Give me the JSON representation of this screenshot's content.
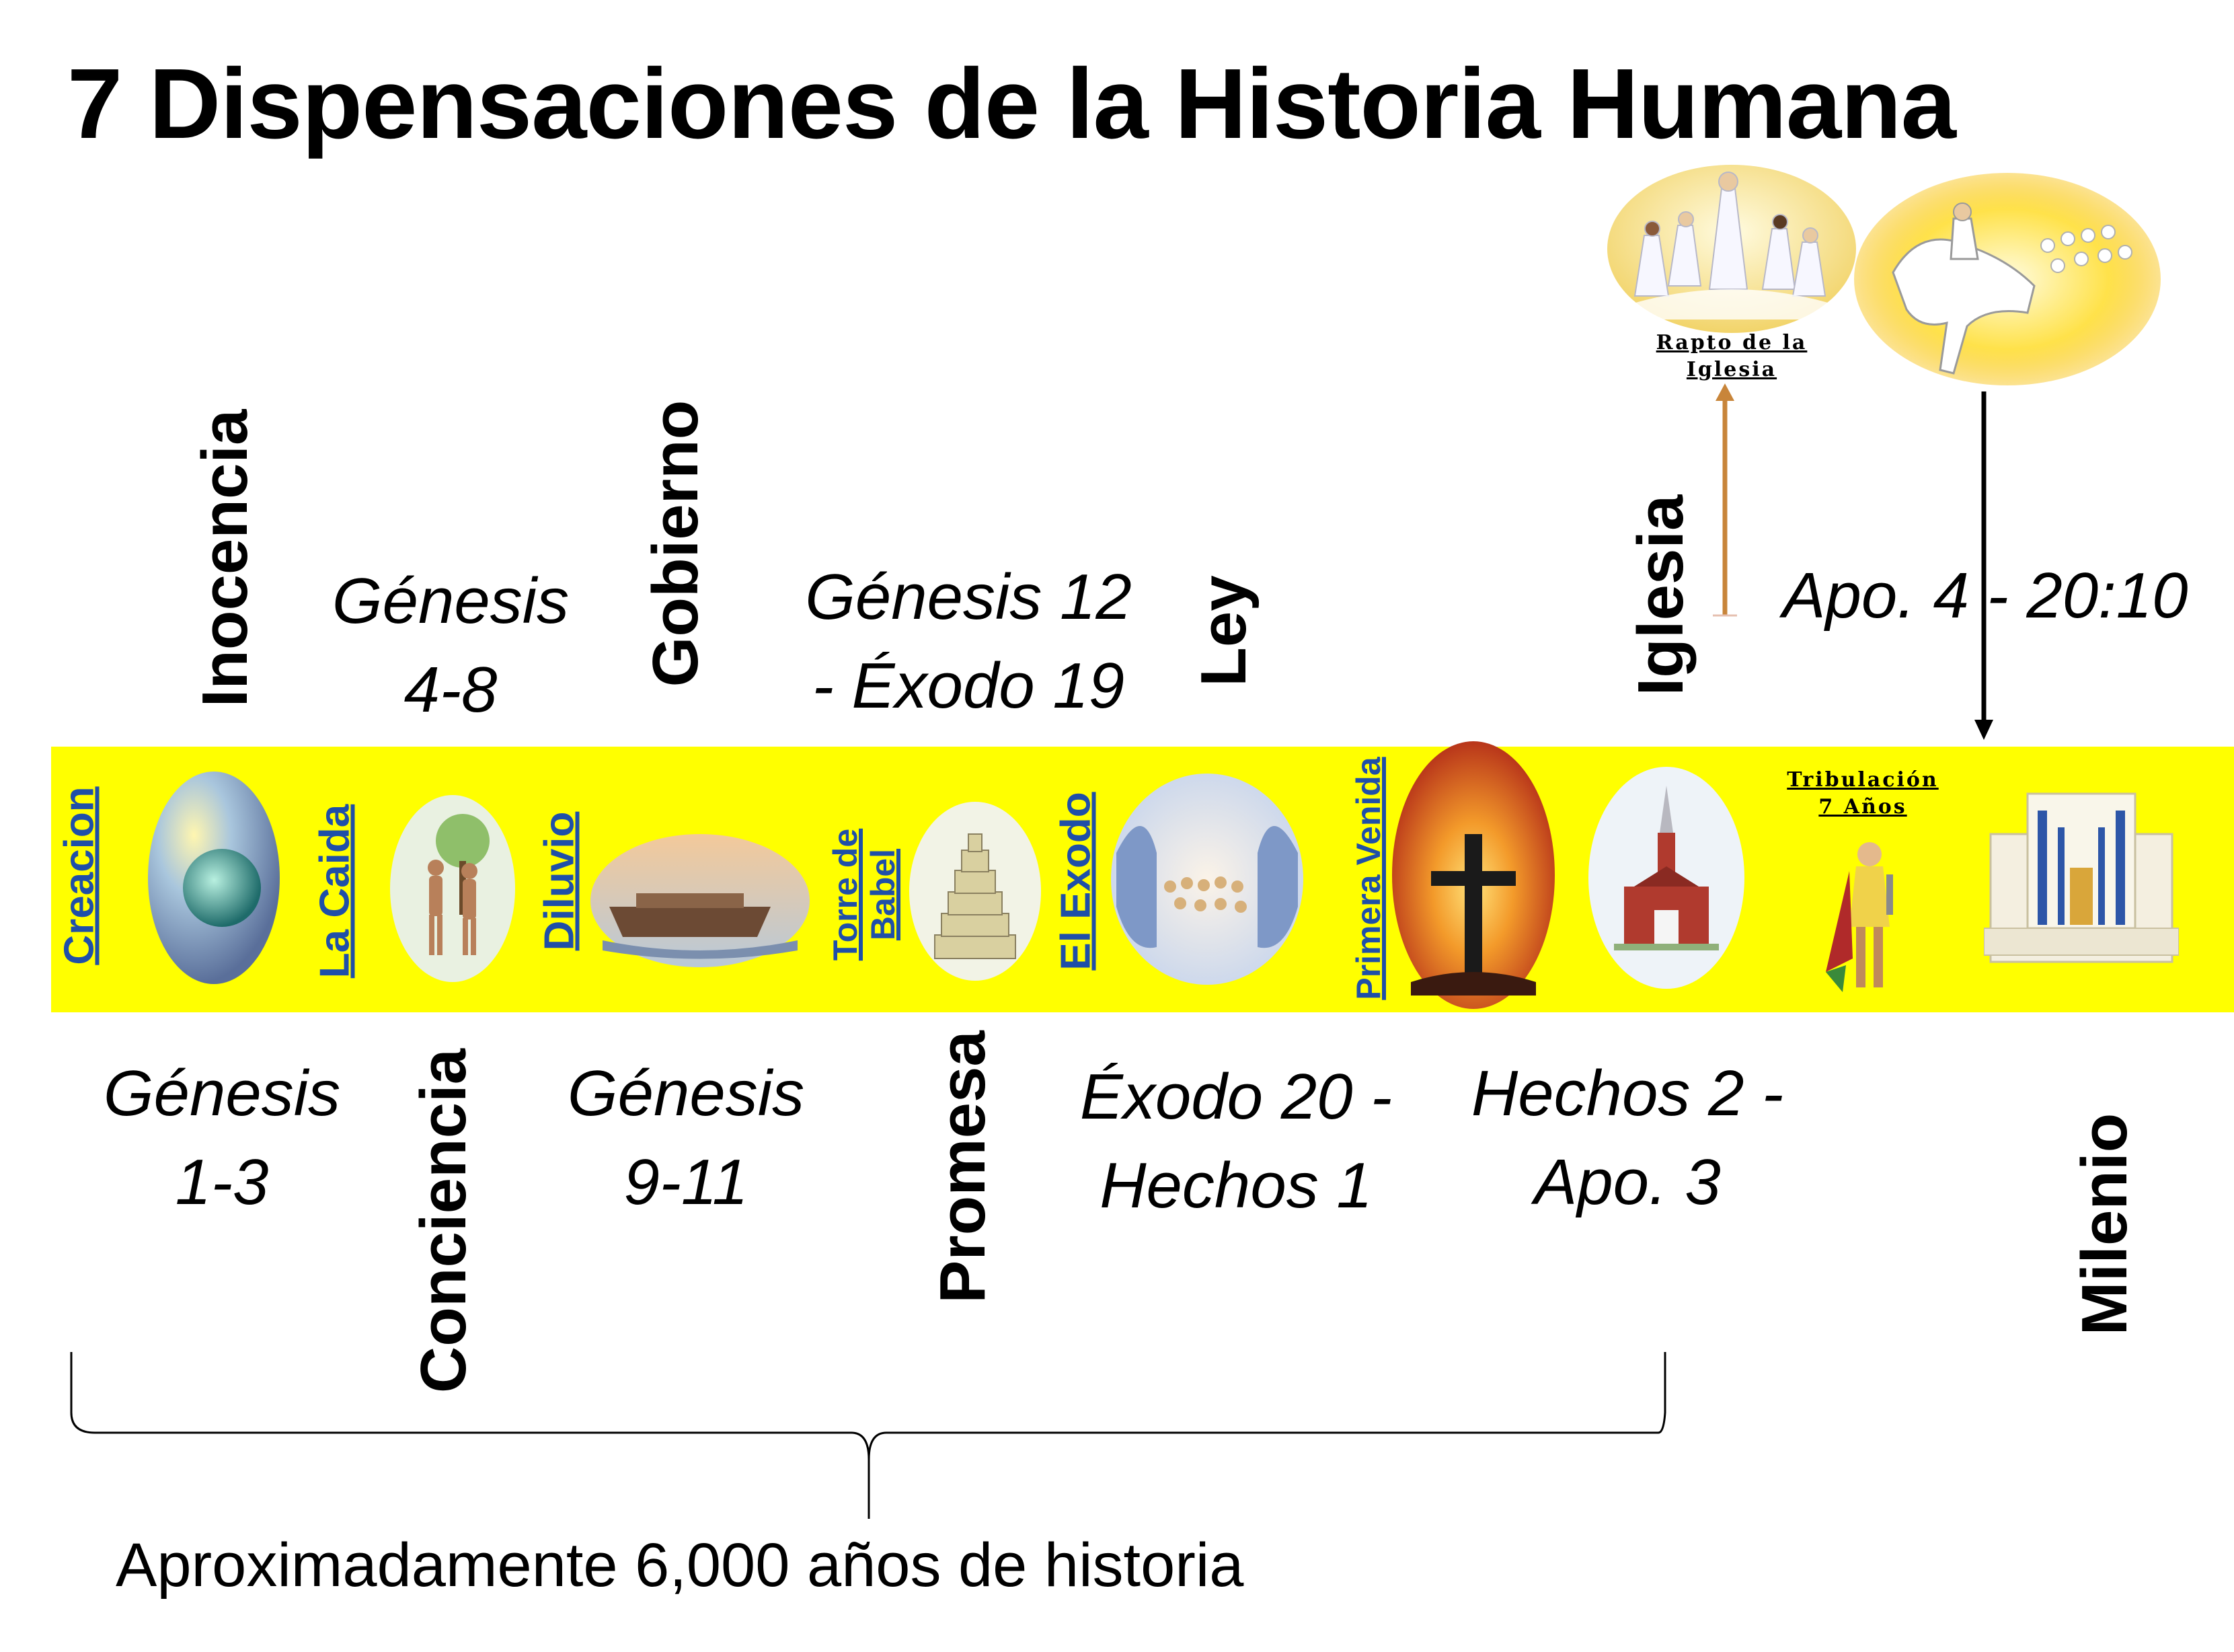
{
  "title": "7 Dispensaciones de la Historia Humana",
  "dispensations": {
    "inocencia": "Inocencia",
    "conciencia": "Conciencia",
    "gobierno": "Gobierno",
    "promesa": "Promesa",
    "ley": "Ley",
    "iglesia": "Iglesia",
    "milenio": "Milenio"
  },
  "references": {
    "genesis_1_3": [
      "Génesis",
      "1-3"
    ],
    "genesis_4_8": [
      "Génesis",
      "4-8"
    ],
    "genesis_9_11": [
      "Génesis",
      "9-11"
    ],
    "genesis_12_exodo_19": [
      "Génesis 12",
      "- Éxodo 19"
    ],
    "exodo_20_hechos_1": [
      "Éxodo 20 -",
      "Hechos 1"
    ],
    "hechos_2_apo_3": [
      "Hechos 2 -",
      "Apo. 3"
    ],
    "apo_4_20_10": "Apo. 4 - 20:10"
  },
  "timeline_events": {
    "creacion": "Creacion",
    "la_caida": "La Caida",
    "diluvio": "Diluvio",
    "torre_de_babel": [
      "Torre de",
      "Babel"
    ],
    "el_exodo": "El Exodo",
    "primera_venida": "Primera Venida",
    "tribulacion": [
      "Tribulación",
      "7 Años"
    ]
  },
  "rapture_caption": [
    "Rapto de la",
    "Iglesia"
  ],
  "footer": "Aproximadamente 6,000 años de historia",
  "colors": {
    "band": "#ffff00",
    "band_label": "#1f4fa8",
    "rapture_arrow": "#c8853a",
    "second_coming_arrow": "#000000"
  },
  "icons": [
    "globe-icon",
    "adam-eve-icon",
    "ark-icon",
    "tower-icon",
    "exodus-icon",
    "cross-icon",
    "church-icon",
    "warrior-icon",
    "temple-icon",
    "rapture-icon",
    "rider-icon"
  ]
}
